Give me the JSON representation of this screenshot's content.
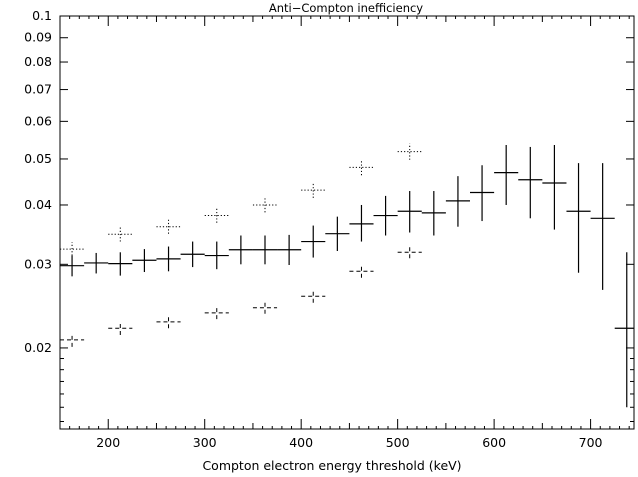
{
  "chart_data": {
    "type": "scatter",
    "title": "Anti−Compton inefficiency",
    "xlabel": "Compton electron energy threshold (keV)",
    "ylabel": "",
    "xlim": [
      150,
      745
    ],
    "ylim": [
      0.0135,
      0.1
    ],
    "yscale": "log",
    "grid": false,
    "x_ticks": [
      200,
      300,
      400,
      500,
      600,
      700
    ],
    "x_tick_labels": [
      "200",
      "300",
      "400",
      "500",
      "600",
      "700"
    ],
    "y_ticks": [
      0.02,
      0.03,
      0.04,
      0.05,
      0.06,
      0.07,
      0.08,
      0.09,
      0.1
    ],
    "y_tick_labels": [
      "0.02",
      "0.03",
      "0.04",
      "0.05",
      "0.06",
      "0.07",
      "0.08",
      "0.09",
      "0.1"
    ],
    "series": [
      {
        "style": "solid",
        "color": "#000000",
        "points": [
          {
            "x": 162.5,
            "xerr": 12.5,
            "y": 0.0298,
            "ylo": 0.0283,
            "yhi": 0.0313
          },
          {
            "x": 187.5,
            "xerr": 12.5,
            "y": 0.0302,
            "ylo": 0.0287,
            "yhi": 0.0317
          },
          {
            "x": 212.5,
            "xerr": 12.5,
            "y": 0.0301,
            "ylo": 0.0284,
            "yhi": 0.0318
          },
          {
            "x": 237.5,
            "xerr": 12.5,
            "y": 0.0306,
            "ylo": 0.0289,
            "yhi": 0.0323
          },
          {
            "x": 262.5,
            "xerr": 12.5,
            "y": 0.0308,
            "ylo": 0.029,
            "yhi": 0.0327
          },
          {
            "x": 287.5,
            "xerr": 12.5,
            "y": 0.0315,
            "ylo": 0.0296,
            "yhi": 0.0335
          },
          {
            "x": 312.5,
            "xerr": 12.5,
            "y": 0.0313,
            "ylo": 0.0293,
            "yhi": 0.0335
          },
          {
            "x": 337.5,
            "xerr": 12.5,
            "y": 0.0322,
            "ylo": 0.03,
            "yhi": 0.0345
          },
          {
            "x": 362.5,
            "xerr": 12.5,
            "y": 0.0322,
            "ylo": 0.03,
            "yhi": 0.0345
          },
          {
            "x": 387.5,
            "xerr": 12.5,
            "y": 0.0322,
            "ylo": 0.0299,
            "yhi": 0.0346
          },
          {
            "x": 412.5,
            "xerr": 12.5,
            "y": 0.0335,
            "ylo": 0.031,
            "yhi": 0.0362
          },
          {
            "x": 437.5,
            "xerr": 12.5,
            "y": 0.0348,
            "ylo": 0.032,
            "yhi": 0.0378
          },
          {
            "x": 462.5,
            "xerr": 12.5,
            "y": 0.0365,
            "ylo": 0.0335,
            "yhi": 0.04
          },
          {
            "x": 487.5,
            "xerr": 12.5,
            "y": 0.038,
            "ylo": 0.0345,
            "yhi": 0.0418
          },
          {
            "x": 512.5,
            "xerr": 12.5,
            "y": 0.0388,
            "ylo": 0.035,
            "yhi": 0.0428
          },
          {
            "x": 537.5,
            "xerr": 12.5,
            "y": 0.0385,
            "ylo": 0.0345,
            "yhi": 0.0428
          },
          {
            "x": 562.5,
            "xerr": 12.5,
            "y": 0.0408,
            "ylo": 0.036,
            "yhi": 0.046
          },
          {
            "x": 587.5,
            "xerr": 12.5,
            "y": 0.0425,
            "ylo": 0.037,
            "yhi": 0.0485
          },
          {
            "x": 612.5,
            "xerr": 12.5,
            "y": 0.0468,
            "ylo": 0.04,
            "yhi": 0.0535
          },
          {
            "x": 637.5,
            "xerr": 12.5,
            "y": 0.0452,
            "ylo": 0.0375,
            "yhi": 0.053
          },
          {
            "x": 662.5,
            "xerr": 12.5,
            "y": 0.0445,
            "ylo": 0.0355,
            "yhi": 0.0535
          },
          {
            "x": 687.5,
            "xerr": 12.5,
            "y": 0.0388,
            "ylo": 0.0288,
            "yhi": 0.049
          },
          {
            "x": 712.5,
            "xerr": 12.5,
            "y": 0.0375,
            "ylo": 0.0265,
            "yhi": 0.049
          },
          {
            "x": 737.5,
            "xerr": 12.5,
            "y": 0.022,
            "ylo": 0.015,
            "yhi": 0.0318
          }
        ]
      },
      {
        "style": "dotted",
        "color": "#000000",
        "points": [
          {
            "x": 162.5,
            "xerr": 12.5,
            "y": 0.0323,
            "ylo": 0.0313,
            "yhi": 0.0334
          },
          {
            "x": 212.5,
            "xerr": 12.5,
            "y": 0.0347,
            "ylo": 0.0335,
            "yhi": 0.0359
          },
          {
            "x": 262.5,
            "xerr": 12.5,
            "y": 0.036,
            "ylo": 0.0348,
            "yhi": 0.0373
          },
          {
            "x": 312.5,
            "xerr": 12.5,
            "y": 0.038,
            "ylo": 0.0367,
            "yhi": 0.0394
          },
          {
            "x": 362.5,
            "xerr": 12.5,
            "y": 0.04,
            "ylo": 0.0386,
            "yhi": 0.0415
          },
          {
            "x": 412.5,
            "xerr": 12.5,
            "y": 0.043,
            "ylo": 0.0414,
            "yhi": 0.0447
          },
          {
            "x": 462.5,
            "xerr": 12.5,
            "y": 0.048,
            "ylo": 0.0462,
            "yhi": 0.0499
          },
          {
            "x": 512.5,
            "xerr": 12.5,
            "y": 0.0518,
            "ylo": 0.0498,
            "yhi": 0.0539
          }
        ]
      },
      {
        "style": "dashed",
        "color": "#000000",
        "points": [
          {
            "x": 162.5,
            "xerr": 12.5,
            "y": 0.0208,
            "ylo": 0.0201,
            "yhi": 0.0215
          },
          {
            "x": 212.5,
            "xerr": 12.5,
            "y": 0.022,
            "ylo": 0.0213,
            "yhi": 0.0227
          },
          {
            "x": 262.5,
            "xerr": 12.5,
            "y": 0.0227,
            "ylo": 0.022,
            "yhi": 0.0234
          },
          {
            "x": 312.5,
            "xerr": 12.5,
            "y": 0.0237,
            "ylo": 0.023,
            "yhi": 0.0245
          },
          {
            "x": 362.5,
            "xerr": 12.5,
            "y": 0.0243,
            "ylo": 0.0236,
            "yhi": 0.0251
          },
          {
            "x": 412.5,
            "xerr": 12.5,
            "y": 0.0257,
            "ylo": 0.0249,
            "yhi": 0.0265
          },
          {
            "x": 462.5,
            "xerr": 12.5,
            "y": 0.029,
            "ylo": 0.0281,
            "yhi": 0.0299
          },
          {
            "x": 512.5,
            "xerr": 12.5,
            "y": 0.0318,
            "ylo": 0.0309,
            "yhi": 0.0328
          }
        ]
      }
    ]
  }
}
